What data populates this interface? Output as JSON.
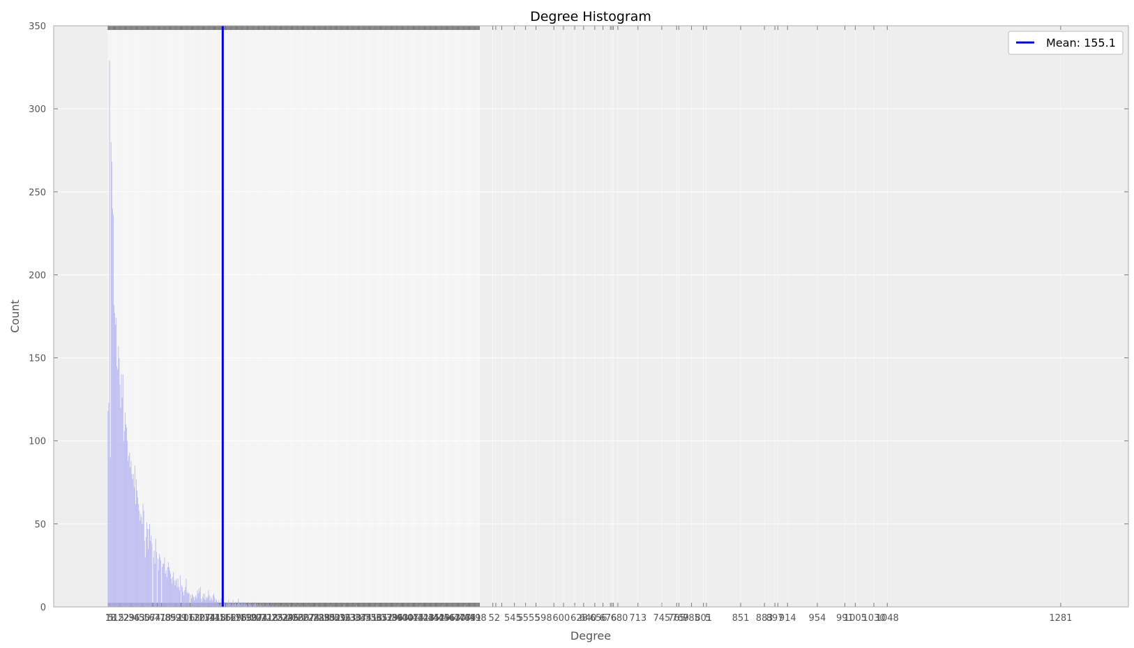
{
  "chart_data": {
    "type": "bar",
    "title": "Degree Histogram",
    "xlabel": "Degree",
    "ylabel": "Count",
    "xlim": [
      -72,
      1372
    ],
    "ylim": [
      0,
      350
    ],
    "yticks": [
      0,
      50,
      100,
      150,
      200,
      250,
      300,
      350
    ],
    "grid": true,
    "legend_position": "top-right",
    "colors": {
      "plot_background": "#eeeeee",
      "grid": "#ffffff",
      "bar_fill": "#b3b3f2",
      "mean_line": "#0000dd",
      "tick_marks": "#777777",
      "axis_text": "#555555"
    },
    "mean": {
      "label": "Mean: 155.1",
      "x": 155.1
    },
    "x_dense_tick_range": [
      1,
      500
    ],
    "x_sparse_ticks": [
      518,
      522,
      530,
      547,
      562,
      576,
      600,
      613,
      628,
      640,
      655,
      666,
      676,
      678,
      680,
      686,
      713,
      745,
      765,
      768,
      785,
      801,
      805,
      851,
      883,
      897,
      901,
      914,
      954,
      991,
      1005,
      1030,
      1048,
      1281
    ],
    "x_visible_tick_labels": [
      {
        "x": 1,
        "label": "1"
      },
      {
        "x": 5,
        "label": "5"
      },
      {
        "x": 520,
        "label": "52"
      },
      {
        "x": 545,
        "label": "545"
      },
      {
        "x": 555,
        "label": "5"
      },
      {
        "x": 570,
        "label": "555"
      },
      {
        "x": 586,
        "label": "598"
      },
      {
        "x": 610,
        "label": "600"
      },
      {
        "x": 634,
        "label": "628"
      },
      {
        "x": 646,
        "label": "640"
      },
      {
        "x": 660,
        "label": "656"
      },
      {
        "x": 673,
        "label": "676"
      },
      {
        "x": 688,
        "label": "680"
      },
      {
        "x": 713,
        "label": "713"
      },
      {
        "x": 745,
        "label": "745"
      },
      {
        "x": 765,
        "label": "765"
      },
      {
        "x": 770,
        "label": "769"
      },
      {
        "x": 785,
        "label": "785"
      },
      {
        "x": 801,
        "label": "801"
      },
      {
        "x": 807,
        "label": "5"
      },
      {
        "x": 851,
        "label": "851"
      },
      {
        "x": 883,
        "label": "883"
      },
      {
        "x": 897,
        "label": "897"
      },
      {
        "x": 914,
        "label": "914"
      },
      {
        "x": 954,
        "label": "954"
      },
      {
        "x": 991,
        "label": "991"
      },
      {
        "x": 1005,
        "label": "1005"
      },
      {
        "x": 1030,
        "label": "1030"
      },
      {
        "x": 1048,
        "label": "1048"
      },
      {
        "x": 1281,
        "label": "1281"
      }
    ],
    "series": [
      {
        "values": [
          [
            1,
            118
          ],
          [
            2,
            123
          ],
          [
            3,
            329
          ],
          [
            4,
            90
          ],
          [
            5,
            280
          ],
          [
            6,
            268
          ],
          [
            7,
            240
          ],
          [
            8,
            236
          ],
          [
            9,
            182
          ],
          [
            10,
            177
          ],
          [
            11,
            170
          ],
          [
            12,
            174
          ],
          [
            13,
            145
          ],
          [
            14,
            143
          ],
          [
            15,
            157
          ],
          [
            16,
            150
          ],
          [
            17,
            134
          ],
          [
            18,
            120
          ],
          [
            19,
            140
          ],
          [
            20,
            126
          ],
          [
            21,
            140
          ],
          [
            22,
            100
          ],
          [
            23,
            106
          ],
          [
            24,
            117
          ],
          [
            25,
            110
          ],
          [
            26,
            108
          ],
          [
            27,
            100
          ],
          [
            28,
            88
          ],
          [
            29,
            91
          ],
          [
            30,
            93
          ],
          [
            31,
            84
          ],
          [
            32,
            88
          ],
          [
            33,
            80
          ],
          [
            34,
            77
          ],
          [
            35,
            80
          ],
          [
            36,
            72
          ],
          [
            37,
            85
          ],
          [
            38,
            62
          ],
          [
            39,
            77
          ],
          [
            40,
            70
          ],
          [
            41,
            66
          ],
          [
            42,
            62
          ],
          [
            43,
            58
          ],
          [
            44,
            52
          ],
          [
            45,
            56
          ],
          [
            46,
            54
          ],
          [
            47,
            50
          ],
          [
            48,
            62
          ],
          [
            49,
            58
          ],
          [
            50,
            40
          ],
          [
            51,
            30
          ],
          [
            52,
            42
          ],
          [
            53,
            51
          ],
          [
            54,
            47
          ],
          [
            55,
            35
          ],
          [
            56,
            47
          ],
          [
            57,
            50
          ],
          [
            58,
            40
          ],
          [
            59,
            43
          ],
          [
            60,
            38
          ],
          [
            62,
            30
          ],
          [
            63,
            34
          ],
          [
            64,
            26
          ],
          [
            65,
            41
          ],
          [
            66,
            33
          ],
          [
            68,
            29
          ],
          [
            69,
            22
          ],
          [
            70,
            32
          ],
          [
            71,
            30
          ],
          [
            72,
            28
          ],
          [
            74,
            24
          ],
          [
            75,
            26
          ],
          [
            76,
            26
          ],
          [
            77,
            30
          ],
          [
            78,
            20
          ],
          [
            79,
            22
          ],
          [
            80,
            18
          ],
          [
            81,
            24
          ],
          [
            82,
            27
          ],
          [
            83,
            24
          ],
          [
            84,
            22
          ],
          [
            85,
            20
          ],
          [
            86,
            17
          ],
          [
            87,
            14
          ],
          [
            88,
            18
          ],
          [
            89,
            21
          ],
          [
            90,
            16
          ],
          [
            91,
            13
          ],
          [
            92,
            16
          ],
          [
            93,
            17
          ],
          [
            94,
            12
          ],
          [
            95,
            17
          ],
          [
            96,
            12
          ],
          [
            97,
            10
          ],
          [
            98,
            19
          ],
          [
            100,
            13
          ],
          [
            101,
            12
          ],
          [
            102,
            9
          ],
          [
            103,
            7
          ],
          [
            104,
            10
          ],
          [
            105,
            12
          ],
          [
            106,
            17
          ],
          [
            107,
            9
          ],
          [
            108,
            8
          ],
          [
            109,
            9
          ],
          [
            110,
            8
          ],
          [
            112,
            7
          ],
          [
            113,
            5
          ],
          [
            114,
            8
          ],
          [
            115,
            7
          ],
          [
            116,
            6
          ],
          [
            117,
            4
          ],
          [
            118,
            6
          ],
          [
            119,
            7
          ],
          [
            120,
            5
          ],
          [
            121,
            10
          ],
          [
            122,
            8
          ],
          [
            123,
            11
          ],
          [
            124,
            9
          ],
          [
            125,
            12
          ],
          [
            126,
            5
          ],
          [
            127,
            3
          ],
          [
            128,
            6
          ],
          [
            129,
            8
          ],
          [
            130,
            5
          ],
          [
            131,
            8
          ],
          [
            132,
            4
          ],
          [
            133,
            6
          ],
          [
            134,
            5
          ],
          [
            135,
            6
          ],
          [
            136,
            10
          ],
          [
            137,
            7
          ],
          [
            138,
            4
          ],
          [
            139,
            6
          ],
          [
            140,
            5
          ],
          [
            141,
            4
          ],
          [
            142,
            7
          ],
          [
            143,
            8
          ],
          [
            144,
            6
          ],
          [
            145,
            3
          ],
          [
            146,
            5
          ],
          [
            147,
            4
          ],
          [
            148,
            3
          ],
          [
            149,
            2
          ],
          [
            150,
            4
          ],
          [
            151,
            1
          ],
          [
            152,
            2
          ],
          [
            153,
            5
          ],
          [
            154,
            3
          ],
          [
            155,
            2
          ],
          [
            156,
            4
          ],
          [
            157,
            3
          ],
          [
            158,
            2
          ],
          [
            160,
            3
          ],
          [
            161,
            1
          ],
          [
            162,
            2
          ],
          [
            163,
            4
          ],
          [
            164,
            2
          ],
          [
            165,
            2
          ],
          [
            166,
            3
          ],
          [
            167,
            1
          ],
          [
            168,
            2
          ],
          [
            169,
            4
          ],
          [
            170,
            1
          ],
          [
            171,
            2
          ],
          [
            172,
            3
          ],
          [
            173,
            2
          ],
          [
            174,
            1
          ],
          [
            175,
            2
          ],
          [
            176,
            5
          ],
          [
            177,
            3
          ],
          [
            178,
            2
          ],
          [
            179,
            1
          ],
          [
            180,
            2
          ],
          [
            181,
            3
          ],
          [
            182,
            2
          ],
          [
            183,
            1
          ],
          [
            184,
            3
          ],
          [
            185,
            2
          ],
          [
            186,
            1
          ],
          [
            187,
            2
          ],
          [
            188,
            1
          ],
          [
            190,
            3
          ],
          [
            191,
            2
          ],
          [
            192,
            1
          ],
          [
            193,
            2
          ],
          [
            194,
            1
          ],
          [
            196,
            2
          ],
          [
            197,
            1
          ],
          [
            198,
            3
          ],
          [
            199,
            2
          ],
          [
            200,
            1
          ],
          [
            202,
            2
          ],
          [
            203,
            1
          ],
          [
            205,
            2
          ],
          [
            206,
            1
          ],
          [
            208,
            1
          ],
          [
            210,
            2
          ],
          [
            212,
            1
          ],
          [
            214,
            1
          ],
          [
            216,
            2
          ],
          [
            218,
            1
          ],
          [
            220,
            1
          ],
          [
            223,
            1
          ],
          [
            226,
            1
          ],
          [
            228,
            1
          ],
          [
            232,
            1
          ],
          [
            235,
            1
          ],
          [
            240,
            1
          ],
          [
            245,
            1
          ],
          [
            250,
            1
          ],
          [
            256,
            1
          ],
          [
            262,
            1
          ],
          [
            270,
            1
          ],
          [
            282,
            1
          ],
          [
            300,
            1
          ],
          [
            318,
            1
          ],
          [
            335,
            1
          ],
          [
            362,
            1
          ],
          [
            390,
            1
          ],
          [
            420,
            1
          ],
          [
            450,
            1
          ],
          [
            480,
            1
          ],
          [
            547,
            1
          ],
          [
            562,
            1
          ],
          [
            628,
            1
          ],
          [
            745,
            2
          ]
        ]
      }
    ]
  }
}
